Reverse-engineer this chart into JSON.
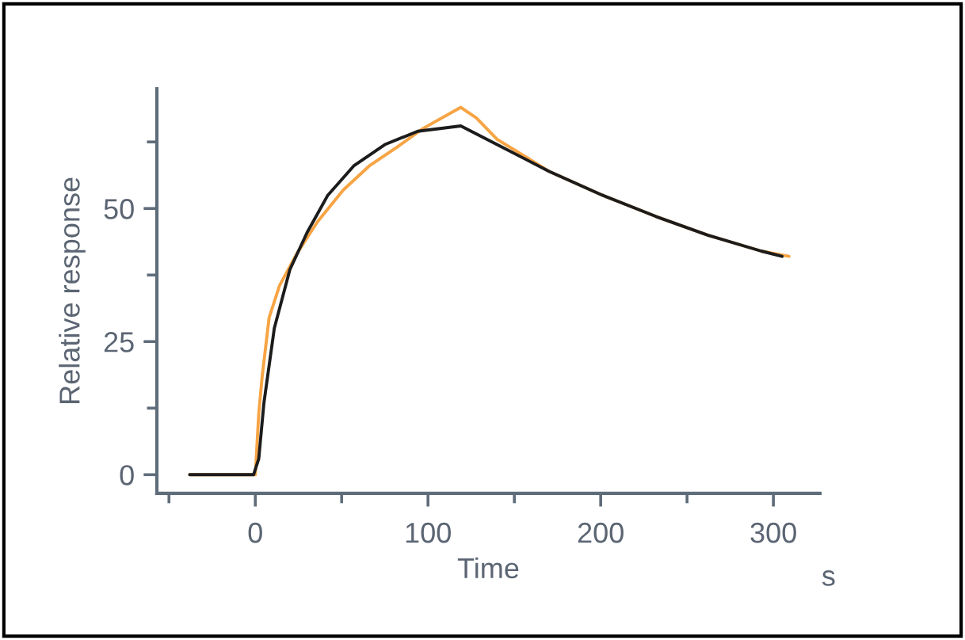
{
  "chart_data": {
    "type": "line",
    "xlabel": "Time",
    "ylabel": "Relative response",
    "annotations": [
      "s"
    ],
    "xlim": [
      -57,
      327
    ],
    "ylim": [
      -3.5,
      72.5
    ],
    "xticks": [
      {
        "value": -50,
        "label": null
      },
      0,
      {
        "value": 50,
        "label": null
      },
      100,
      {
        "value": 150,
        "label": null
      },
      200,
      {
        "value": 250,
        "label": null
      },
      300
    ],
    "yticks": [
      0,
      {
        "value": 12.5,
        "label": null
      },
      25,
      {
        "value": 37.5,
        "label": null
      },
      50,
      {
        "value": 62.5,
        "label": null
      }
    ],
    "series": [
      {
        "color": "#f7a444",
        "x": [
          -38,
          0,
          2,
          4,
          8,
          14,
          24,
          36,
          51,
          66,
          82,
          97,
          119,
          128,
          140,
          155,
          170,
          201,
          232,
          262,
          293,
          309
        ],
        "values": [
          0,
          0,
          11.5,
          18.5,
          29.5,
          35.5,
          41.5,
          47.5,
          53.5,
          58,
          61.5,
          65,
          69,
          67,
          63,
          60,
          57,
          52.5,
          48.5,
          45,
          42,
          41
        ]
      },
      {
        "color": "#1c1c1c",
        "x": [
          -38,
          -1,
          2,
          5,
          11,
          20,
          30,
          42,
          57,
          75,
          94,
          119,
          140,
          155,
          170,
          201,
          232,
          262,
          293,
          305
        ],
        "values": [
          0,
          0,
          3,
          13.5,
          27.5,
          38.5,
          45.5,
          52.5,
          58,
          62,
          64.5,
          65.5,
          62,
          59.5,
          57,
          52.5,
          48.5,
          45,
          42,
          41
        ]
      }
    ]
  }
}
